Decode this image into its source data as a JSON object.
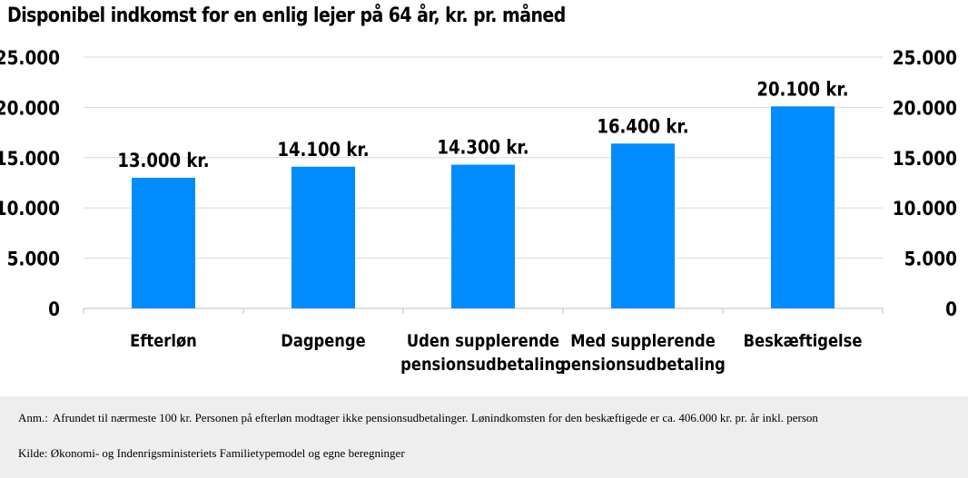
{
  "chart_data": {
    "type": "bar",
    "title": "Disponibel indkomst for en enlig lejer på 64 år, kr. pr. måned",
    "categories": [
      [
        "Efterløn"
      ],
      [
        "Dagpenge"
      ],
      [
        "Uden supplerende",
        "pensionsudbetaling"
      ],
      [
        "Med supplerende",
        "pensionsudbetaling"
      ],
      [
        "Beskæftigelse"
      ]
    ],
    "values": [
      13000,
      14100,
      14300,
      16400,
      20100
    ],
    "data_labels": [
      "13.000 kr.",
      "14.100 kr.",
      "14.300 kr.",
      "16.400 kr.",
      "20.100 kr."
    ],
    "ylim": [
      0,
      25000
    ],
    "yticks": [
      0,
      5000,
      10000,
      15000,
      20000,
      25000
    ],
    "ytick_labels": [
      "0",
      "5.000",
      "10.000",
      "15.000",
      "20.000",
      "25.000"
    ],
    "secondary_axis": true,
    "grid": true,
    "bar_color": "#008cff",
    "grid_color": "#d9d9d9"
  },
  "footer": {
    "note_label": "Anm.:",
    "note_text": "Afrundet til nærmeste 100 kr. Personen på efterløn modtager ikke pensionsudbetalinger.  Lønindkomsten for den beskæftigede er ca. 406.000 kr. pr. år inkl. person",
    "source": "Kilde: Økonomi- og Indenrigsministeriets Familietypemodel og egne beregninger"
  }
}
